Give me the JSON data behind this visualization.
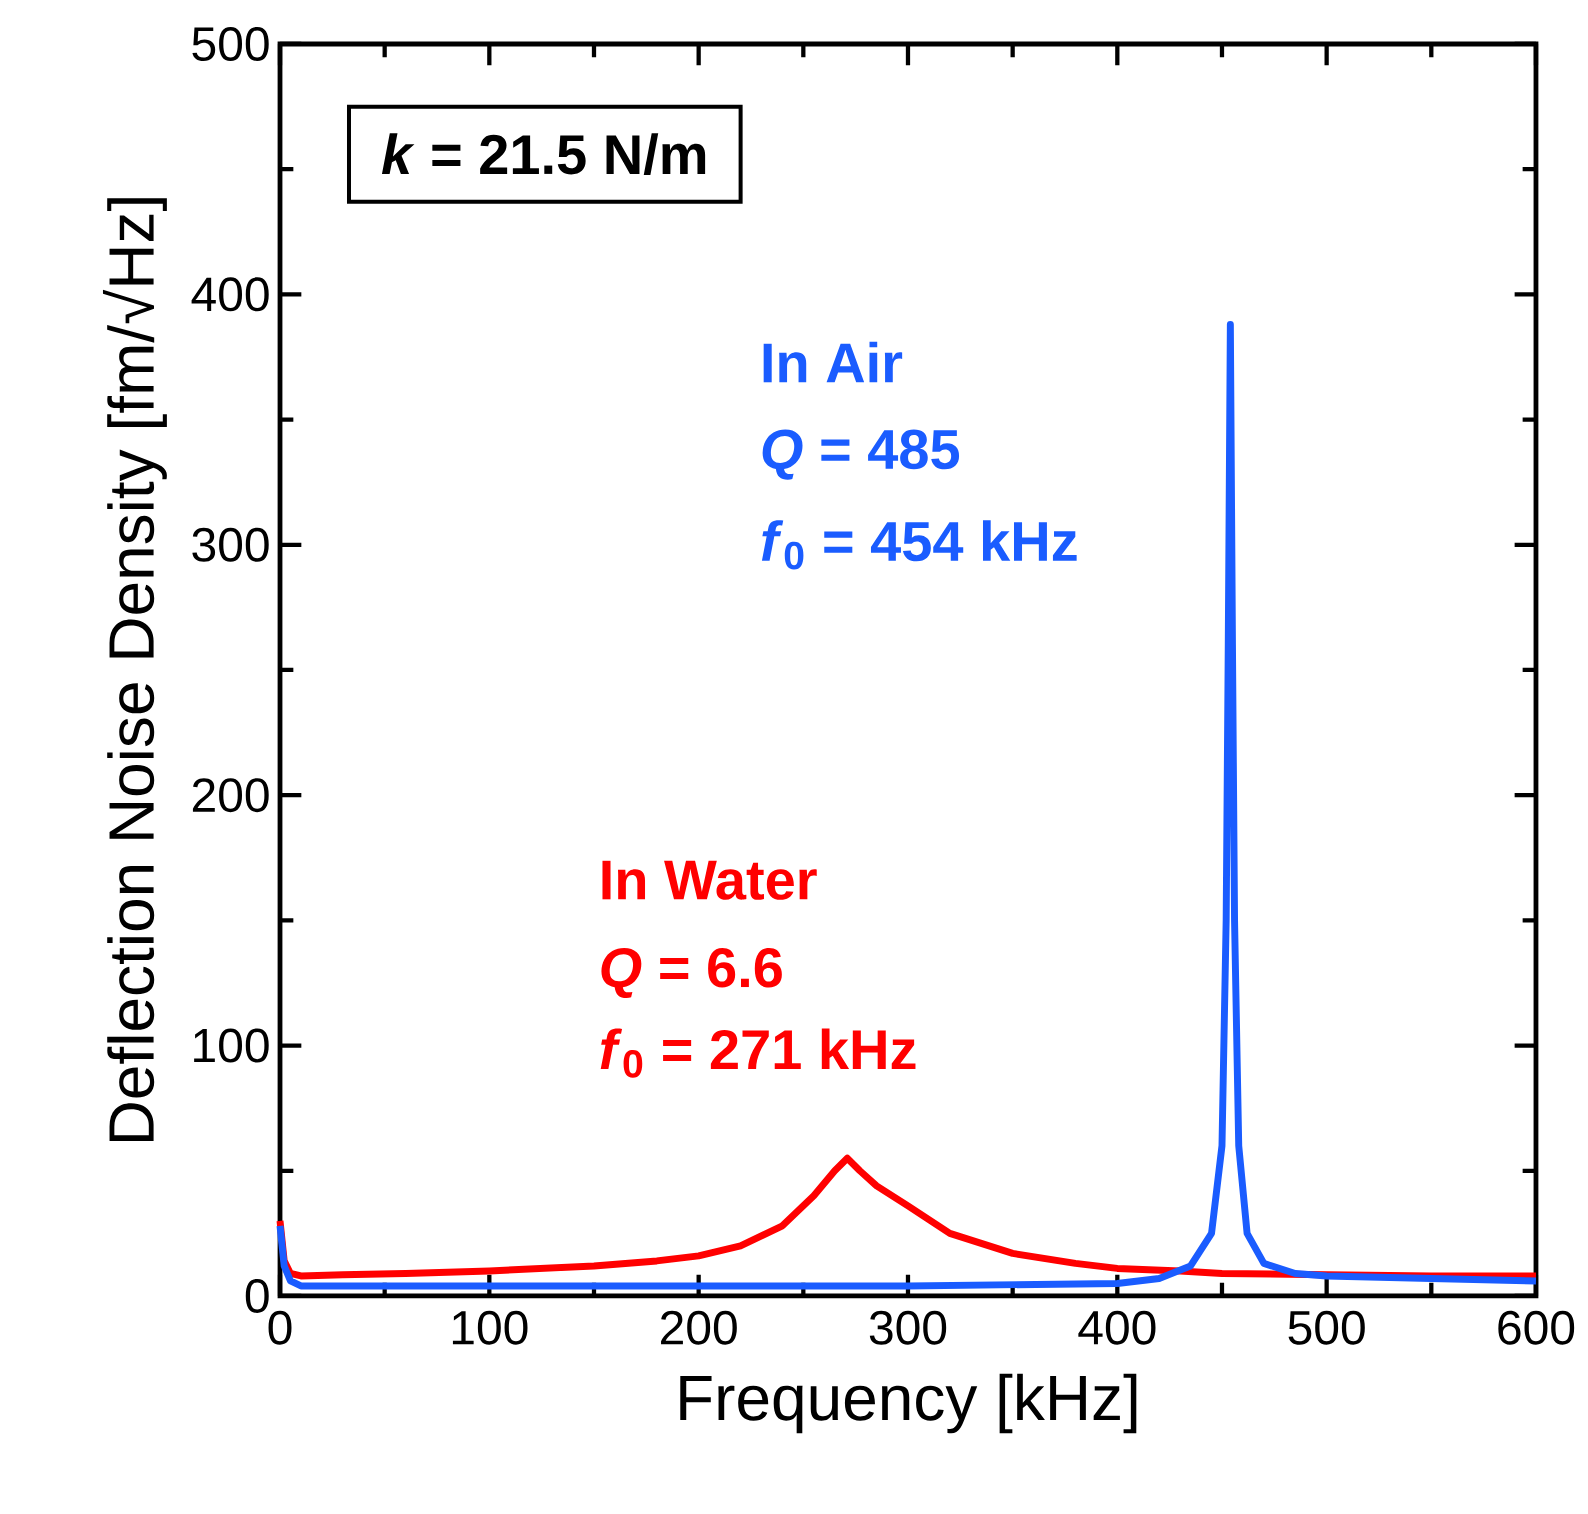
{
  "chart_data": {
    "type": "line",
    "xlabel": "Frequency [kHz]",
    "ylabel": "Deflection Noise Density [fm/√Hz]",
    "xlim": [
      0,
      600
    ],
    "xticks": [
      0,
      100,
      200,
      300,
      400,
      500,
      600
    ],
    "ylim": [
      0,
      500
    ],
    "yticks": [
      0,
      100,
      200,
      300,
      400,
      500
    ],
    "legend": false,
    "grid": false,
    "marker": "none",
    "line_style": "solid",
    "series": [
      {
        "name": "In Water",
        "color": "#ff0000",
        "x": [
          0,
          2,
          5,
          10,
          30,
          60,
          100,
          150,
          180,
          200,
          220,
          240,
          255,
          265,
          271,
          277,
          285,
          300,
          320,
          350,
          380,
          400,
          430,
          450,
          500,
          550,
          600
        ],
        "values": [
          30,
          14,
          9,
          8,
          8.5,
          9,
          10,
          12,
          14,
          16,
          20,
          28,
          40,
          50,
          55,
          50,
          44,
          36,
          25,
          17,
          13,
          11,
          10,
          9,
          8.5,
          8,
          8
        ]
      },
      {
        "name": "In Air",
        "color": "#1a5cff",
        "x": [
          0,
          2,
          5,
          10,
          50,
          100,
          200,
          300,
          400,
          420,
          435,
          445,
          450,
          452,
          453,
          454,
          455,
          456,
          458,
          462,
          470,
          485,
          500,
          550,
          600
        ],
        "values": [
          28,
          12,
          6,
          4,
          4,
          4,
          4,
          4,
          5,
          7,
          12,
          25,
          60,
          150,
          260,
          388,
          260,
          150,
          60,
          25,
          13,
          9,
          8,
          7,
          6
        ]
      }
    ],
    "annotations": [
      "*k* = 21.5 N/m",
      "*Q* = 6.6",
      "*f*$_{0}$ = 271 kHz",
      "*Q* = 485",
      "*f*$_{0}$ = 454 kHz"
    ]
  }
}
